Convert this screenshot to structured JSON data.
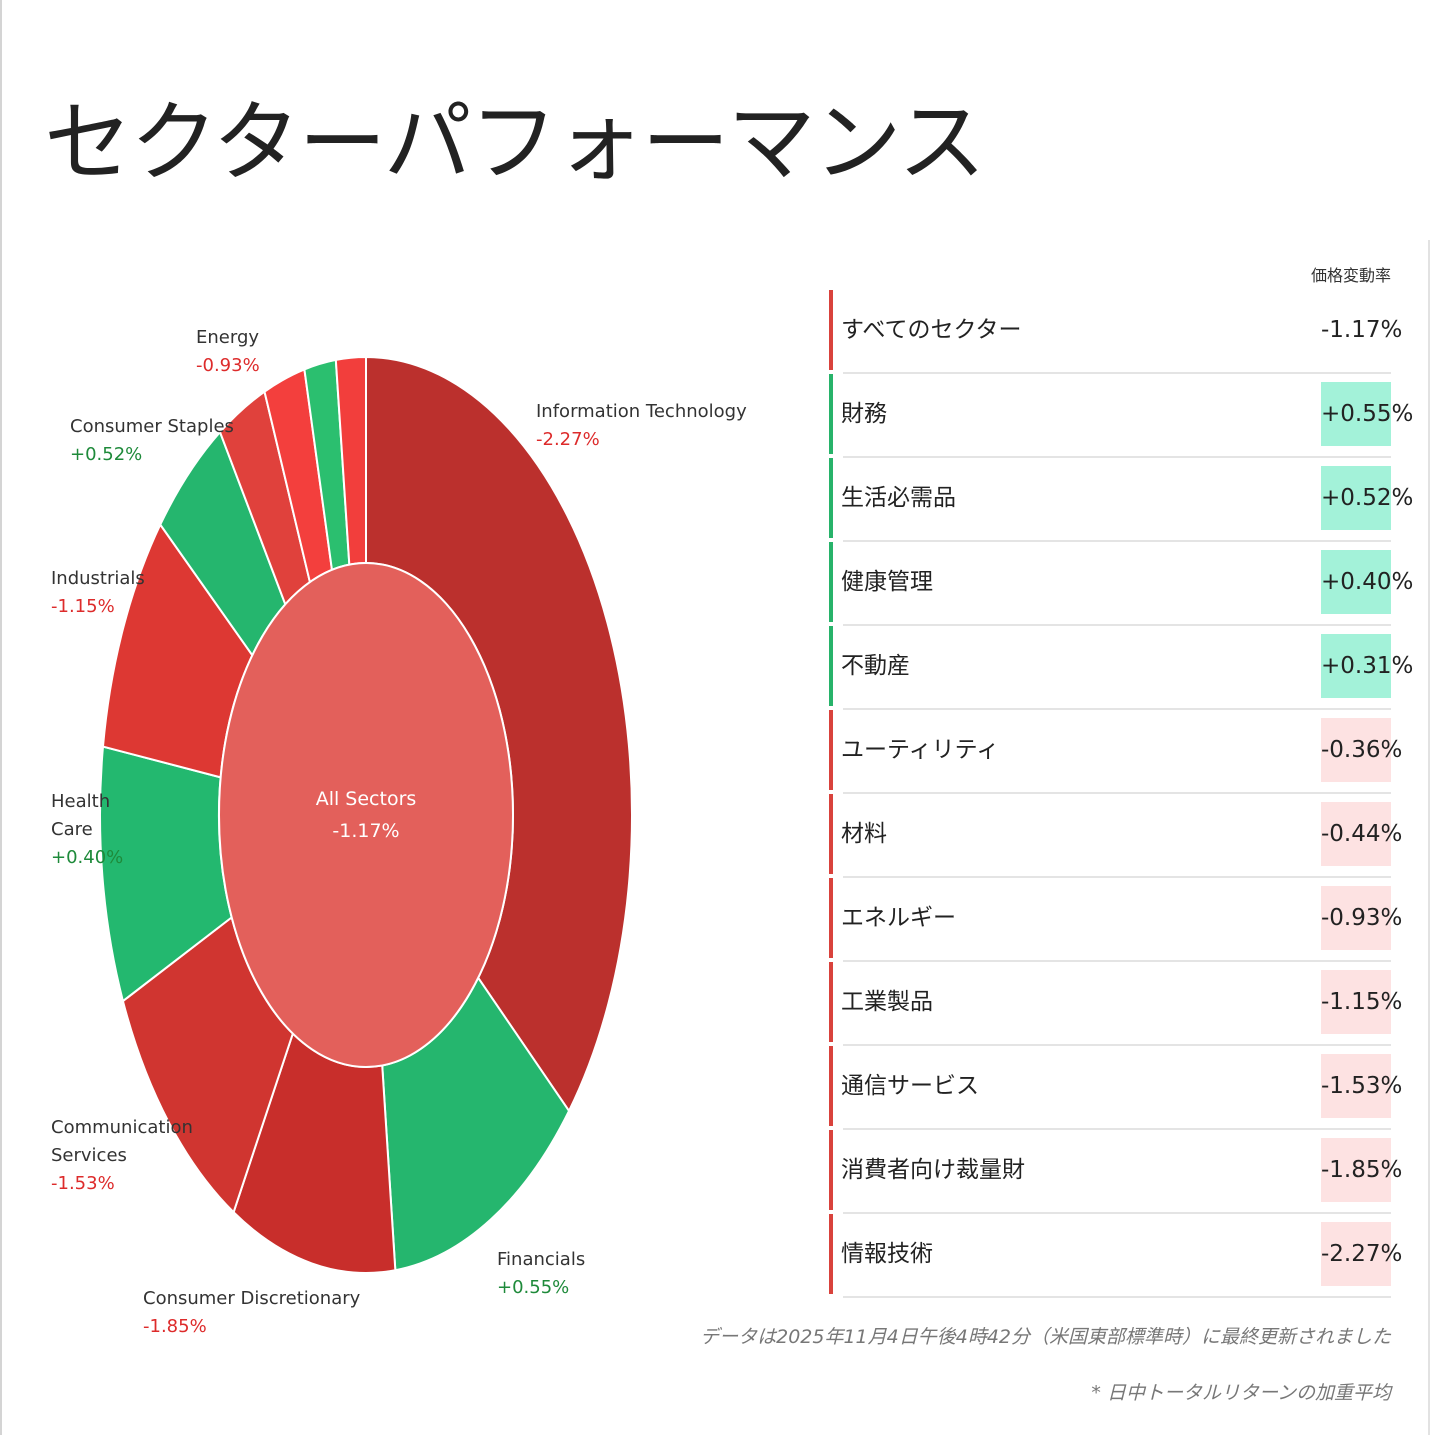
{
  "title": "セクターパフォーマンス",
  "colors": {
    "negative_text": "#dd2b2b",
    "positive_text": "#1e8a3a",
    "positive_bar": "#27b36a",
    "negative_bar": "#d9423c",
    "positive_bg": "#a3f2d9",
    "negative_bg": "#fde2e2"
  },
  "chart_data": {
    "type": "sunburst",
    "center": {
      "label": "All Sectors",
      "value": "-1.17%",
      "color": "#e3605b"
    },
    "slices": [
      {
        "name": "Information Technology",
        "change": "-2.27%",
        "weight": 36.0,
        "color": "#bb302d",
        "label_lines": [
          "Information Technology"
        ],
        "sign": "negative"
      },
      {
        "name": "Financials",
        "change": "+0.55%",
        "weight": 12.0,
        "color": "#25b66e",
        "label_lines": [
          "Financials"
        ],
        "sign": "positive"
      },
      {
        "name": "Consumer Discretionary",
        "change": "-1.85%",
        "weight": 10.0,
        "color": "#c82e2b",
        "label_lines": [
          "Consumer Discretionary"
        ],
        "sign": "negative"
      },
      {
        "name": "Communication Services",
        "change": "-1.53%",
        "weight": 10.0,
        "color": "#d03530",
        "label_lines": [
          "Communication",
          "Services"
        ],
        "sign": "negative"
      },
      {
        "name": "Health Care",
        "change": "+0.40%",
        "weight": 9.0,
        "color": "#23b86f",
        "label_lines": [
          "Health",
          "Care"
        ],
        "sign": "positive"
      },
      {
        "name": "Industrials",
        "change": "-1.15%",
        "weight": 8.5,
        "color": "#dd3833",
        "label_lines": [
          "Industrials"
        ],
        "sign": "negative"
      },
      {
        "name": "Consumer Staples",
        "change": "+0.52%",
        "weight": 4.8,
        "color": "#25b66e",
        "label_lines": [
          "Consumer Staples"
        ],
        "sign": "positive"
      },
      {
        "name": "Energy",
        "change": "-0.93%",
        "weight": 3.0,
        "color": "#e0413c",
        "label_lines": [
          "Energy"
        ],
        "sign": "negative"
      },
      {
        "name": "Utilities",
        "change": "-0.36%",
        "weight": 2.5,
        "color": "#f33f3d",
        "label_lines": [],
        "sign": "negative"
      },
      {
        "name": "Real Estate",
        "change": "+0.31%",
        "weight": 1.9,
        "color": "#2bbf6f",
        "label_lines": [],
        "sign": "positive"
      },
      {
        "name": "Materials",
        "change": "-0.44%",
        "weight": 1.8,
        "color": "#f23e3c",
        "label_lines": [],
        "sign": "negative"
      }
    ]
  },
  "table": {
    "header": "価格変動率",
    "rows": [
      {
        "name": "すべてのセクター",
        "value": "-1.17%",
        "sign": "negative",
        "highlight": false
      },
      {
        "name": "財務",
        "value": "+0.55%",
        "sign": "positive",
        "highlight": true
      },
      {
        "name": "生活必需品",
        "value": "+0.52%",
        "sign": "positive",
        "highlight": true
      },
      {
        "name": "健康管理",
        "value": "+0.40%",
        "sign": "positive",
        "highlight": true
      },
      {
        "name": "不動産",
        "value": "+0.31%",
        "sign": "positive",
        "highlight": true
      },
      {
        "name": "ユーティリティ",
        "value": "-0.36%",
        "sign": "negative",
        "highlight": true
      },
      {
        "name": "材料",
        "value": "-0.44%",
        "sign": "negative",
        "highlight": true
      },
      {
        "name": "エネルギー",
        "value": "-0.93%",
        "sign": "negative",
        "highlight": true
      },
      {
        "name": "工業製品",
        "value": "-1.15%",
        "sign": "negative",
        "highlight": true
      },
      {
        "name": "通信サービス",
        "value": "-1.53%",
        "sign": "negative",
        "highlight": true
      },
      {
        "name": "消費者向け裁量財",
        "value": "-1.85%",
        "sign": "negative",
        "highlight": true
      },
      {
        "name": "情報技術",
        "value": "-2.27%",
        "sign": "negative",
        "highlight": true
      }
    ]
  },
  "footnotes": {
    "updated": "データは2025年11月4日午後4時42分（米国東部標準時）に最終更新されました",
    "weighted": "* 日中トータルリターンの加重平均"
  }
}
